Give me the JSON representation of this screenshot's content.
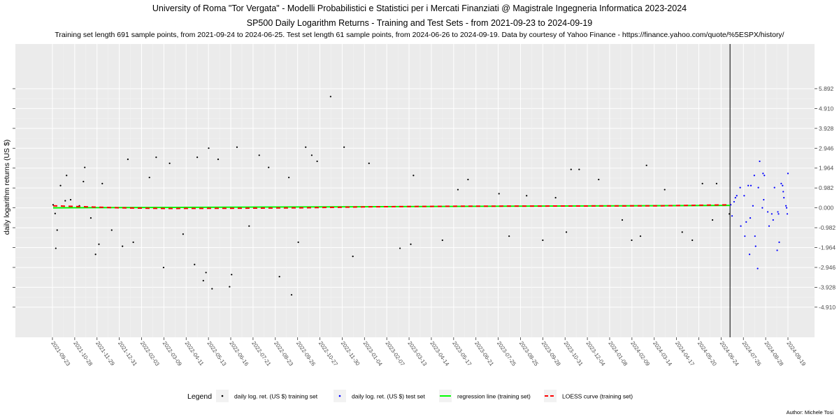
{
  "titles": {
    "line1": "University of Roma \"Tor Vergata\" - Modelli Probabilistici e Statistici per i Mercati Finanziati @ Magistrale Ingegneria Informatica 2023-2024",
    "line2": "SP500 Daily Logarithm Returns - Training and Test Sets - from 2021-09-23 to 2024-09-19",
    "line3": "Training set length 691 sample points, from 2021-09-24 to 2024-06-25. Test set length 61 sample points, from 2024-06-26 to 2024-09-19. Data by courtesy of Yahoo Finance - https://finance.yahoo.com/quote/%5ESPX/history/"
  },
  "author": "Author: Michele Tosi",
  "chart_data": {
    "type": "scatter",
    "ylabel": "daily logarithm returns (US $)",
    "xlabel": "",
    "ylim": [
      -6.4,
      8.1
    ],
    "y_ticks": [
      -4.91,
      -3.928,
      -2.946,
      -1.964,
      -0.982,
      0.0,
      0.982,
      1.964,
      2.946,
      3.928,
      4.91,
      5.892
    ],
    "y_tick_labels": [
      "-4.910",
      "-3.928",
      "-2.946",
      "-1.964",
      "-0.982",
      "0.000",
      "0.982",
      "1.964",
      "2.946",
      "3.928",
      "4.910",
      "5.892"
    ],
    "x_tick_labels": [
      "2021-09-23",
      "2021-10-28",
      "2021-11-29",
      "2021-12-31",
      "2022-02-03",
      "2022-03-09",
      "2022-04-11",
      "2022-05-13",
      "2022-06-16",
      "2022-07-21",
      "2022-08-23",
      "2022-09-26",
      "2022-10-27",
      "2022-11-30",
      "2023-01-04",
      "2023-02-07",
      "2023-03-13",
      "2023-04-14",
      "2023-05-17",
      "2023-06-21",
      "2023-07-25",
      "2023-08-25",
      "2023-09-28",
      "2023-10-31",
      "2023-12-04",
      "2024-01-08",
      "2024-02-09",
      "2024-03-14",
      "2024-04-17",
      "2024-05-20",
      "2024-06-24",
      "2024-07-26",
      "2024-08-28",
      "2024-09-19"
    ],
    "train_test_split_date": "2024-06-25",
    "grid": true,
    "legend_position": "bottom",
    "legend": {
      "title": "Legend",
      "items": [
        {
          "label": "daily log. ret. (US $) training set",
          "color": "#000000",
          "shape": "point"
        },
        {
          "label": "daily log. ret. (US $) test set",
          "color": "#0000ff",
          "shape": "point"
        },
        {
          "label": "regression line (training set)",
          "color": "#00ff00",
          "shape": "line"
        },
        {
          "label": "LOESS curve (training set)",
          "color": "#ff0000",
          "shape": "dashed-line"
        }
      ]
    },
    "regression_line": {
      "start": {
        "x": "2021-09-24",
        "y": 0.0
      },
      "end": {
        "x": "2024-06-25",
        "y": 0.12
      }
    },
    "loess_curve": [
      {
        "x": "2021-09-24",
        "y": 0.1
      },
      {
        "x": "2021-12-31",
        "y": 0.0
      },
      {
        "x": "2022-03-09",
        "y": -0.03
      },
      {
        "x": "2022-06-16",
        "y": -0.02
      },
      {
        "x": "2022-09-26",
        "y": 0.0
      },
      {
        "x": "2023-01-04",
        "y": 0.05
      },
      {
        "x": "2023-05-17",
        "y": 0.08
      },
      {
        "x": "2023-10-31",
        "y": 0.09
      },
      {
        "x": "2024-03-14",
        "y": 0.1
      },
      {
        "x": "2024-06-25",
        "y": 0.15
      }
    ],
    "series": [
      {
        "name": "daily log. ret. (US $) training set",
        "color": "#000000",
        "points": [
          {
            "x": "2021-09-24",
            "y": 0.15
          },
          {
            "x": "2021-09-27",
            "y": -0.28
          },
          {
            "x": "2021-09-28",
            "y": -2.0
          },
          {
            "x": "2021-09-30",
            "y": -1.1
          },
          {
            "x": "2021-10-05",
            "y": 1.1
          },
          {
            "x": "2021-10-12",
            "y": 0.35
          },
          {
            "x": "2021-10-14",
            "y": 1.6
          },
          {
            "x": "2021-10-20",
            "y": 0.4
          },
          {
            "x": "2021-11-02",
            "y": 0.1
          },
          {
            "x": "2021-11-08",
            "y": 1.3
          },
          {
            "x": "2021-11-10",
            "y": 2.0
          },
          {
            "x": "2021-11-19",
            "y": -0.5
          },
          {
            "x": "2021-11-26",
            "y": -2.3
          },
          {
            "x": "2021-12-01",
            "y": -1.8
          },
          {
            "x": "2021-12-06",
            "y": 1.2
          },
          {
            "x": "2021-12-20",
            "y": -1.1
          },
          {
            "x": "2022-01-05",
            "y": -1.9
          },
          {
            "x": "2022-01-13",
            "y": 2.4
          },
          {
            "x": "2022-01-21",
            "y": -1.7
          },
          {
            "x": "2022-02-14",
            "y": 1.5
          },
          {
            "x": "2022-02-24",
            "y": 2.5
          },
          {
            "x": "2022-03-07",
            "y": -2.95
          },
          {
            "x": "2022-03-16",
            "y": 2.2
          },
          {
            "x": "2022-04-05",
            "y": -1.3
          },
          {
            "x": "2022-04-22",
            "y": -2.8
          },
          {
            "x": "2022-04-26",
            "y": 2.5
          },
          {
            "x": "2022-05-05",
            "y": -3.6
          },
          {
            "x": "2022-05-09",
            "y": -3.2
          },
          {
            "x": "2022-05-13",
            "y": 2.95
          },
          {
            "x": "2022-05-18",
            "y": -4.0
          },
          {
            "x": "2022-05-27",
            "y": 2.4
          },
          {
            "x": "2022-06-13",
            "y": -3.9
          },
          {
            "x": "2022-06-16",
            "y": -3.3
          },
          {
            "x": "2022-06-24",
            "y": 3.0
          },
          {
            "x": "2022-07-12",
            "y": -0.9
          },
          {
            "x": "2022-07-27",
            "y": 2.6
          },
          {
            "x": "2022-08-10",
            "y": 2.0
          },
          {
            "x": "2022-08-26",
            "y": -3.4
          },
          {
            "x": "2022-09-09",
            "y": 1.5
          },
          {
            "x": "2022-09-13",
            "y": -4.3
          },
          {
            "x": "2022-09-23",
            "y": -1.7
          },
          {
            "x": "2022-10-04",
            "y": 3.0
          },
          {
            "x": "2022-10-13",
            "y": 2.6
          },
          {
            "x": "2022-10-21",
            "y": 2.3
          },
          {
            "x": "2022-11-10",
            "y": 5.5
          },
          {
            "x": "2022-11-30",
            "y": 3.0
          },
          {
            "x": "2022-12-13",
            "y": -2.4
          },
          {
            "x": "2023-01-06",
            "y": 2.2
          },
          {
            "x": "2023-02-21",
            "y": -2.0
          },
          {
            "x": "2023-03-09",
            "y": -1.8
          },
          {
            "x": "2023-03-13",
            "y": 1.6
          },
          {
            "x": "2023-04-25",
            "y": -1.6
          },
          {
            "x": "2023-05-18",
            "y": 0.9
          },
          {
            "x": "2023-06-02",
            "y": 1.4
          },
          {
            "x": "2023-07-18",
            "y": 0.7
          },
          {
            "x": "2023-08-02",
            "y": -1.4
          },
          {
            "x": "2023-08-28",
            "y": 0.6
          },
          {
            "x": "2023-09-21",
            "y": -1.6
          },
          {
            "x": "2023-10-10",
            "y": 0.5
          },
          {
            "x": "2023-10-26",
            "y": -1.2
          },
          {
            "x": "2023-11-02",
            "y": 1.9
          },
          {
            "x": "2023-11-14",
            "y": 1.9
          },
          {
            "x": "2023-12-13",
            "y": 1.4
          },
          {
            "x": "2024-01-17",
            "y": -0.6
          },
          {
            "x": "2024-01-31",
            "y": -1.6
          },
          {
            "x": "2024-02-13",
            "y": -1.4
          },
          {
            "x": "2024-02-22",
            "y": 2.1
          },
          {
            "x": "2024-03-20",
            "y": 0.9
          },
          {
            "x": "2024-04-15",
            "y": -1.2
          },
          {
            "x": "2024-04-30",
            "y": -1.6
          },
          {
            "x": "2024-05-15",
            "y": 1.2
          },
          {
            "x": "2024-05-30",
            "y": -0.6
          },
          {
            "x": "2024-06-05",
            "y": 1.2
          },
          {
            "x": "2024-06-24",
            "y": -0.3
          }
        ]
      },
      {
        "name": "daily log. ret. (US $) test set",
        "color": "#0000ff",
        "points": [
          {
            "x": "2024-06-26",
            "y": 0.15
          },
          {
            "x": "2024-06-28",
            "y": -0.4
          },
          {
            "x": "2024-07-01",
            "y": 0.3
          },
          {
            "x": "2024-07-03",
            "y": 0.5
          },
          {
            "x": "2024-07-05",
            "y": 0.6
          },
          {
            "x": "2024-07-10",
            "y": 1.0
          },
          {
            "x": "2024-07-11",
            "y": -0.9
          },
          {
            "x": "2024-07-16",
            "y": 0.6
          },
          {
            "x": "2024-07-17",
            "y": -1.4
          },
          {
            "x": "2024-07-19",
            "y": -0.7
          },
          {
            "x": "2024-07-22",
            "y": 1.1
          },
          {
            "x": "2024-07-24",
            "y": -2.3
          },
          {
            "x": "2024-07-25",
            "y": -0.5
          },
          {
            "x": "2024-07-26",
            "y": 1.1
          },
          {
            "x": "2024-07-29",
            "y": 0.1
          },
          {
            "x": "2024-07-31",
            "y": 1.6
          },
          {
            "x": "2024-08-01",
            "y": -1.4
          },
          {
            "x": "2024-08-02",
            "y": -1.9
          },
          {
            "x": "2024-08-05",
            "y": -3.0
          },
          {
            "x": "2024-08-06",
            "y": 1.0
          },
          {
            "x": "2024-08-08",
            "y": 2.3
          },
          {
            "x": "2024-08-12",
            "y": 0.0
          },
          {
            "x": "2024-08-13",
            "y": 1.7
          },
          {
            "x": "2024-08-14",
            "y": 0.4
          },
          {
            "x": "2024-08-15",
            "y": 1.6
          },
          {
            "x": "2024-08-20",
            "y": -0.2
          },
          {
            "x": "2024-08-22",
            "y": -0.9
          },
          {
            "x": "2024-08-26",
            "y": -0.3
          },
          {
            "x": "2024-08-28",
            "y": -0.6
          },
          {
            "x": "2024-08-30",
            "y": 1.0
          },
          {
            "x": "2024-09-03",
            "y": -2.1
          },
          {
            "x": "2024-09-04",
            "y": -0.2
          },
          {
            "x": "2024-09-05",
            "y": -0.3
          },
          {
            "x": "2024-09-06",
            "y": -1.7
          },
          {
            "x": "2024-09-09",
            "y": 1.2
          },
          {
            "x": "2024-09-11",
            "y": 1.1
          },
          {
            "x": "2024-09-12",
            "y": 0.8
          },
          {
            "x": "2024-09-13",
            "y": 0.5
          },
          {
            "x": "2024-09-16",
            "y": 0.1
          },
          {
            "x": "2024-09-17",
            "y": 0.0
          },
          {
            "x": "2024-09-18",
            "y": -0.3
          },
          {
            "x": "2024-09-19",
            "y": 1.7
          }
        ]
      }
    ]
  }
}
